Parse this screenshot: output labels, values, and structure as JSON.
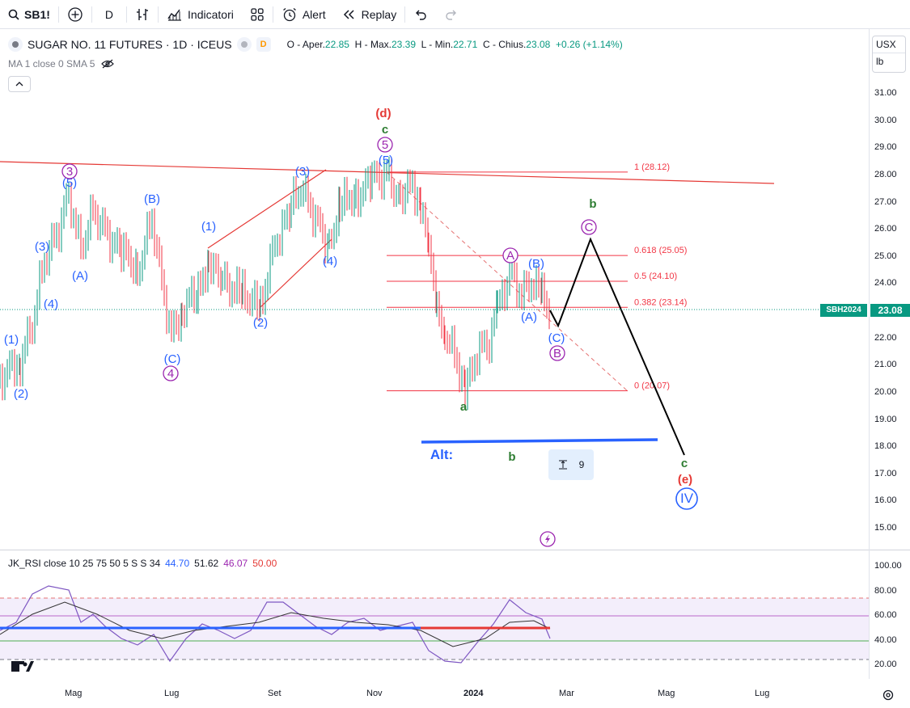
{
  "toolbar": {
    "symbol": "SB1!",
    "interval": "D",
    "indicators_label": "Indicatori",
    "alert_label": "Alert",
    "replay_label": "Replay"
  },
  "legend": {
    "title": "SUGAR NO. 11 FUTURES · 1D · ICEUS",
    "badge": "D",
    "ohlc_o_label": "O - Aper.",
    "ohlc_o": "22.85",
    "ohlc_h_label": "H - Max.",
    "ohlc_h": "23.39",
    "ohlc_l_label": "L - Min.",
    "ohlc_l": "22.71",
    "ohlc_c_label": "C - Chius.",
    "ohlc_c": "23.08",
    "change": "+0.26 (+1.14%)",
    "ma": "MA 1 close 0 SMA 5"
  },
  "axis_selector": {
    "currency": "USX",
    "unit": "lb"
  },
  "price_tag": "23.08",
  "symbol_tag": "SBH2024",
  "measure_value": "9",
  "rsi_legend": {
    "name": "JK_RSI close 10 25 75 50 5 S S 34",
    "v1": "44.70",
    "v2": "51.62",
    "v3": "46.07",
    "v4": "50.00"
  },
  "colors": {
    "up": "#089981",
    "down": "#f23645",
    "blue": "#2962ff",
    "purple": "#9c27b0",
    "green": "#2e7d32",
    "red": "#e53935",
    "fib": "#e57373",
    "rsi_fill": "#f3eefb"
  },
  "chart_data": {
    "type": "candlestick",
    "price_ticks": [
      "31.00",
      "30.00",
      "29.00",
      "28.00",
      "27.00",
      "26.00",
      "25.00",
      "24.00",
      "23.00",
      "22.00",
      "21.00",
      "20.00",
      "19.00",
      "18.00",
      "17.00",
      "16.00",
      "15.00"
    ],
    "rsi_ticks": [
      "100.00",
      "80.00",
      "60.00",
      "40.00",
      "20.00"
    ],
    "time_ticks": [
      "Mag",
      "Lug",
      "Set",
      "Nov",
      "2024",
      "Mar",
      "Mag",
      "Lug"
    ],
    "fib_levels": [
      {
        "label": "1 (28.12)",
        "price": 28.12
      },
      {
        "label": "0.618 (25.05)",
        "price": 25.05
      },
      {
        "label": "0.5 (24.10)",
        "price": 24.1
      },
      {
        "label": "0.382 (23.14)",
        "price": 23.14
      },
      {
        "label": "0 (20.07)",
        "price": 20.07
      }
    ],
    "wave_labels": [
      {
        "text": "(1)",
        "color": "blue"
      },
      {
        "text": "(2)",
        "color": "blue"
      },
      {
        "text": "(4)",
        "color": "blue"
      },
      {
        "text": "(3)",
        "color": "blue"
      },
      {
        "text": "(5)",
        "color": "blue"
      },
      {
        "text": "3",
        "color": "purple"
      },
      {
        "text": "(A)",
        "color": "blue"
      },
      {
        "text": "(B)",
        "color": "blue"
      },
      {
        "text": "(C)",
        "color": "blue"
      },
      {
        "text": "4",
        "color": "purple"
      },
      {
        "text": "(1)",
        "color": "blue"
      },
      {
        "text": "(2)",
        "color": "blue"
      },
      {
        "text": "(3)",
        "color": "blue"
      },
      {
        "text": "(4)",
        "color": "blue"
      },
      {
        "text": "(d)",
        "color": "red"
      },
      {
        "text": "c",
        "color": "green"
      },
      {
        "text": "5",
        "color": "purple"
      },
      {
        "text": "(5)",
        "color": "blue"
      },
      {
        "text": "a",
        "color": "green"
      },
      {
        "text": "A",
        "color": "purple"
      },
      {
        "text": "(B)",
        "color": "blue"
      },
      {
        "text": "(A)",
        "color": "blue"
      },
      {
        "text": "(C)",
        "color": "blue"
      },
      {
        "text": "B",
        "color": "purple"
      },
      {
        "text": "b",
        "color": "green"
      },
      {
        "text": "C",
        "color": "purple"
      },
      {
        "text": "c",
        "color": "green"
      },
      {
        "text": "(e)",
        "color": "red"
      },
      {
        "text": "IV",
        "color": "blue"
      },
      {
        "text": "Alt:",
        "color": "blue"
      },
      {
        "text": "b",
        "color": "green"
      }
    ],
    "price_path": [
      [
        0,
        20.6
      ],
      [
        25,
        21.2
      ],
      [
        40,
        22.5
      ],
      [
        55,
        24.8
      ],
      [
        70,
        25.8
      ],
      [
        85,
        27.4
      ],
      [
        100,
        25.3
      ],
      [
        115,
        26.6
      ],
      [
        130,
        25.9
      ],
      [
        150,
        25.2
      ],
      [
        170,
        24.5
      ],
      [
        188,
        26.5
      ],
      [
        200,
        24.0
      ],
      [
        212,
        22.0
      ],
      [
        225,
        23.0
      ],
      [
        245,
        23.7
      ],
      [
        258,
        25.0
      ],
      [
        275,
        24.0
      ],
      [
        300,
        23.6
      ],
      [
        322,
        23.1
      ],
      [
        340,
        25.5
      ],
      [
        360,
        26.8
      ],
      [
        372,
        27.5
      ],
      [
        390,
        26.5
      ],
      [
        407,
        25.4
      ],
      [
        420,
        26.8
      ],
      [
        440,
        27.3
      ],
      [
        460,
        27.8
      ],
      [
        478,
        28.1
      ],
      [
        495,
        27.2
      ],
      [
        510,
        27.6
      ],
      [
        520,
        27.0
      ],
      [
        530,
        25.0
      ],
      [
        540,
        23.3
      ],
      [
        550,
        22.3
      ],
      [
        565,
        21.2
      ],
      [
        575,
        20.1
      ],
      [
        590,
        21.5
      ],
      [
        605,
        21.8
      ],
      [
        615,
        23.0
      ],
      [
        630,
        24.3
      ],
      [
        645,
        23.6
      ],
      [
        660,
        24.2
      ],
      [
        670,
        23.5
      ],
      [
        680,
        23.08
      ]
    ]
  }
}
